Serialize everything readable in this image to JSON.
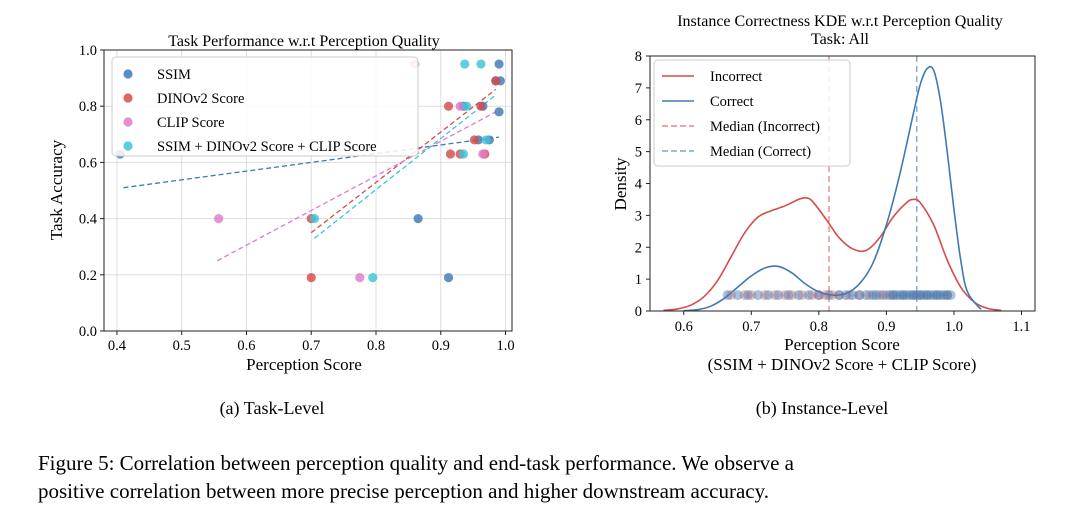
{
  "figure": {
    "caption_line1": "Figure 5: Correlation between perception quality and end-task performance. We observe a",
    "caption_line2": "positive correlation between more precise perception and higher downstream accuracy."
  },
  "colors": {
    "ssim": "#3d7ab3",
    "dino": "#d44c4c",
    "clip": "#e27ac8",
    "combined": "#3ec3d8",
    "incorrect": "#d44c4c",
    "correct": "#3d7ab3",
    "axes": "#222222",
    "grid": "#dddddd"
  },
  "chart_data": [
    {
      "type": "scatter",
      "title": "Task Performance w.r.t Perception Quality",
      "subtitle": "(a) Task-Level",
      "xlabel": "Perception Score",
      "ylabel": "Task Accuracy",
      "xlim": [
        0.38,
        1.01
      ],
      "ylim": [
        0.0,
        1.0
      ],
      "xticks": [
        "0.4",
        "0.5",
        "0.6",
        "0.7",
        "0.8",
        "0.9",
        "1.0"
      ],
      "xtick_values": [
        0.4,
        0.5,
        0.6,
        0.7,
        0.8,
        0.9,
        1.0
      ],
      "yticks": [
        "0.0",
        "0.2",
        "0.4",
        "0.6",
        "0.8",
        "1.0"
      ],
      "ytick_values": [
        0.0,
        0.2,
        0.4,
        0.6,
        0.8,
        1.0
      ],
      "grid": true,
      "legend_position": "top-left",
      "series": [
        {
          "name": "SSIM",
          "color_key": "ssim",
          "points": [
            [
              0.405,
              0.63
            ],
            [
              0.865,
              0.4
            ],
            [
              0.912,
              0.19
            ],
            [
              0.935,
              0.8
            ],
            [
              0.958,
              0.68
            ],
            [
              0.965,
              0.8
            ],
            [
              0.975,
              0.68
            ],
            [
              0.985,
              0.89
            ],
            [
              0.99,
              0.95
            ],
            [
              0.99,
              0.78
            ],
            [
              0.992,
              0.89
            ]
          ],
          "trend": [
            [
              0.41,
              0.51
            ],
            [
              0.99,
              0.69
            ]
          ]
        },
        {
          "name": "DINOv2 Score",
          "color_key": "dino",
          "points": [
            [
              0.7,
              0.19
            ],
            [
              0.7,
              0.4
            ],
            [
              0.912,
              0.8
            ],
            [
              0.915,
              0.63
            ],
            [
              0.93,
              0.63
            ],
            [
              0.952,
              0.68
            ],
            [
              0.962,
              0.8
            ],
            [
              0.968,
              0.63
            ],
            [
              0.985,
              0.89
            ]
          ],
          "trend": [
            [
              0.7,
              0.35
            ],
            [
              0.985,
              0.86
            ]
          ]
        },
        {
          "name": "CLIP Score",
          "color_key": "clip",
          "points": [
            [
              0.557,
              0.4
            ],
            [
              0.775,
              0.19
            ],
            [
              0.86,
              0.95
            ],
            [
              0.93,
              0.8
            ],
            [
              0.965,
              0.63
            ]
          ],
          "trend": [
            [
              0.555,
              0.25
            ],
            [
              0.985,
              0.78
            ]
          ]
        },
        {
          "name": "SSIM + DINOv2 Score + CLIP Score",
          "color_key": "combined",
          "points": [
            [
              0.705,
              0.4
            ],
            [
              0.795,
              0.19
            ],
            [
              0.935,
              0.63
            ],
            [
              0.937,
              0.95
            ],
            [
              0.94,
              0.8
            ],
            [
              0.962,
              0.95
            ],
            [
              0.97,
              0.68
            ]
          ],
          "trend": [
            [
              0.705,
              0.33
            ],
            [
              0.985,
              0.84
            ]
          ]
        }
      ]
    },
    {
      "type": "line",
      "title": "Instance Correctness KDE w.r.t Perception Quality",
      "title_line2": "Task: All",
      "subtitle": "(b) Instance-Level",
      "xlabel": "Perception Score",
      "xlabel_line2": "(SSIM + DINOv2 Score + CLIP Score)",
      "ylabel": "Density",
      "xlim": [
        0.55,
        1.12
      ],
      "ylim": [
        0,
        8
      ],
      "xticks": [
        "0.6",
        "0.7",
        "0.8",
        "0.9",
        "1.0",
        "1.1"
      ],
      "xtick_values": [
        0.6,
        0.7,
        0.8,
        0.9,
        1.0,
        1.1
      ],
      "yticks": [
        "0",
        "1",
        "2",
        "3",
        "4",
        "5",
        "6",
        "7",
        "8"
      ],
      "ytick_values": [
        0,
        1,
        2,
        3,
        4,
        5,
        6,
        7,
        8
      ],
      "grid": false,
      "legend_position": "top-left",
      "series": [
        {
          "name": "Incorrect",
          "color_key": "incorrect",
          "style": "solid",
          "x": [
            0.57,
            0.59,
            0.61,
            0.63,
            0.65,
            0.67,
            0.69,
            0.71,
            0.73,
            0.75,
            0.77,
            0.78,
            0.79,
            0.81,
            0.83,
            0.85,
            0.87,
            0.89,
            0.91,
            0.93,
            0.94,
            0.95,
            0.97,
            0.99,
            1.01,
            1.03,
            1.05,
            1.07
          ],
          "y": [
            0.02,
            0.06,
            0.18,
            0.45,
            0.95,
            1.7,
            2.45,
            2.95,
            3.15,
            3.3,
            3.5,
            3.55,
            3.45,
            2.9,
            2.3,
            1.95,
            1.9,
            2.3,
            2.95,
            3.4,
            3.5,
            3.4,
            2.7,
            1.6,
            0.75,
            0.28,
            0.08,
            0.02
          ]
        },
        {
          "name": "Correct",
          "color_key": "correct",
          "style": "solid",
          "x": [
            0.6,
            0.62,
            0.64,
            0.66,
            0.68,
            0.7,
            0.72,
            0.74,
            0.76,
            0.78,
            0.8,
            0.82,
            0.84,
            0.86,
            0.88,
            0.9,
            0.92,
            0.94,
            0.95,
            0.96,
            0.97,
            0.98,
            0.99,
            1.0,
            1.01,
            1.02,
            1.04
          ],
          "y": [
            0.01,
            0.04,
            0.15,
            0.4,
            0.75,
            1.1,
            1.35,
            1.4,
            1.2,
            0.85,
            0.6,
            0.5,
            0.55,
            0.85,
            1.5,
            2.7,
            4.3,
            6.2,
            7.1,
            7.6,
            7.55,
            6.6,
            5.0,
            3.2,
            1.6,
            0.6,
            0.05
          ]
        },
        {
          "name": "Median (Incorrect)",
          "color_key": "incorrect",
          "style": "dashed",
          "vline": 0.815
        },
        {
          "name": "Median (Correct)",
          "color_key": "correct",
          "style": "dashed",
          "vline": 0.945
        }
      ],
      "rug": {
        "y": 0.5,
        "incorrect_x": [
          0.67,
          0.69,
          0.7,
          0.72,
          0.735,
          0.75,
          0.76,
          0.775,
          0.79,
          0.8,
          0.81,
          0.82,
          0.83,
          0.845,
          0.86,
          0.875,
          0.89,
          0.9,
          0.91,
          0.925,
          0.94,
          0.95,
          0.96,
          0.975,
          0.99
        ],
        "correct_x": [
          0.665,
          0.68,
          0.695,
          0.71,
          0.725,
          0.74,
          0.755,
          0.77,
          0.785,
          0.8,
          0.815,
          0.83,
          0.84,
          0.85,
          0.86,
          0.87,
          0.88,
          0.885,
          0.895,
          0.905,
          0.91,
          0.915,
          0.92,
          0.925,
          0.93,
          0.935,
          0.94,
          0.945,
          0.95,
          0.955,
          0.96,
          0.965,
          0.97,
          0.975,
          0.98,
          0.985,
          0.99,
          0.995
        ]
      }
    }
  ]
}
